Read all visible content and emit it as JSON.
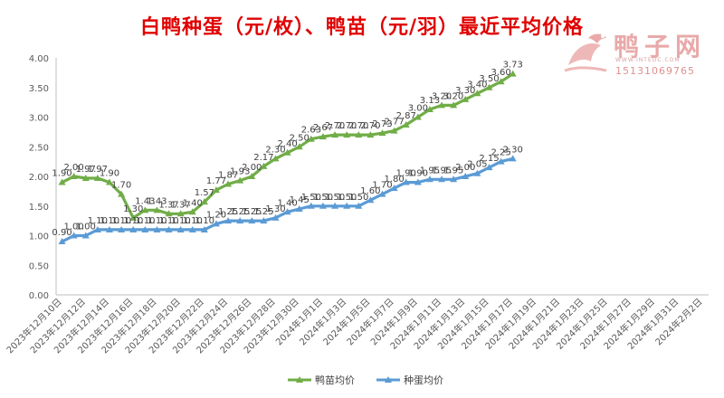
{
  "watermark": {
    "brand": "鸭子网",
    "url": "WWW.INTEDC.COM",
    "phone": "15131069765",
    "accent": "#e9a9a9"
  },
  "chart_data": {
    "type": "line",
    "title": "白鸭种蛋（元/枚）、鸭苗（元/羽）最近平均价格",
    "xlabel": "",
    "ylabel": "",
    "ylim": [
      0,
      4
    ],
    "yticks": [
      "0.00",
      "0.50",
      "1.00",
      "1.50",
      "2.00",
      "2.50",
      "3.00",
      "3.50",
      "4.00"
    ],
    "x_tick_labels": [
      "2023年12月10日",
      "2023年12月12日",
      "2023年12月14日",
      "2023年12月16日",
      "2023年12月18日",
      "2023年12月20日",
      "2023年12月22日",
      "2023年12月24日",
      "2023年12月26日",
      "2023年12月28日",
      "2023年12月30日",
      "2024年1月1日",
      "2024年1月3日",
      "2024年1月5日",
      "2024年1月7日",
      "2024年1月9日",
      "2024年1月11日",
      "2024年1月13日",
      "2024年1月15日",
      "2024年1月17日",
      "2024年1月19日",
      "2024年1月21日",
      "2024年1月23日",
      "2024年1月25日",
      "2024年1月27日",
      "2024年1月29日",
      "2024年1月31日",
      "2024年2月2日"
    ],
    "x_day_span": 55,
    "grid": false,
    "legend": "bottom",
    "series": [
      {
        "name": "鸭苗均价",
        "color": "#70ad47",
        "values": [
          1.9,
          2.0,
          1.97,
          1.97,
          1.9,
          1.7,
          1.3,
          1.43,
          1.43,
          1.37,
          1.37,
          1.4,
          1.57,
          1.77,
          1.87,
          1.93,
          2.0,
          2.17,
          2.3,
          2.4,
          2.5,
          2.63,
          2.67,
          2.7,
          2.7,
          2.7,
          2.7,
          2.73,
          2.77,
          2.87,
          3.0,
          3.13,
          3.2,
          3.2,
          3.3,
          3.4,
          3.5,
          3.6,
          3.73
        ],
        "labels": [
          "1.90",
          "2.00",
          "1.97",
          "1.97",
          "1.90",
          "1.70",
          "1.30",
          "1.43",
          "1.43",
          "1.37",
          "1.37",
          "1.40",
          "1.57",
          "1.77",
          "1.87",
          "1.93",
          "2.00",
          "2.17",
          "2.30",
          "2.40",
          "2.50",
          "2.63",
          "2.67",
          "2.70",
          "2.70",
          "2.70",
          "2.70",
          "2.73",
          "2.77",
          "2.87",
          "3.00",
          "3.13",
          "3.20",
          "3.20",
          "3.30",
          "3.40",
          "3.50",
          "3.60",
          "3.73"
        ]
      },
      {
        "name": "种蛋均价",
        "color": "#5b9bd5",
        "values": [
          0.9,
          1.0,
          1.0,
          1.1,
          1.1,
          1.1,
          1.1,
          1.1,
          1.1,
          1.1,
          1.1,
          1.1,
          1.1,
          1.2,
          1.25,
          1.25,
          1.25,
          1.25,
          1.3,
          1.4,
          1.45,
          1.5,
          1.5,
          1.5,
          1.5,
          1.5,
          1.6,
          1.7,
          1.8,
          1.9,
          1.9,
          1.95,
          1.95,
          1.95,
          2.0,
          2.05,
          2.15,
          2.25,
          2.3
        ],
        "labels": [
          "0.90",
          "1.00",
          "1.00",
          "1.10",
          "1.10",
          "1.10",
          "1.10",
          "1.10",
          "1.10",
          "1.10",
          "1.10",
          "1.10",
          "1.10",
          "1.20",
          "1.25",
          "1.25",
          "1.25",
          "1.25",
          "1.30",
          "1.40",
          "1.45",
          "1.50",
          "1.50",
          "1.50",
          "1.50",
          "1.50",
          "1.60",
          "1.70",
          "1.80",
          "1.90",
          "1.90",
          "1.95",
          "1.95",
          "1.95",
          "2.00",
          "2.05",
          "2.15",
          "2.25",
          "2.30"
        ]
      }
    ]
  }
}
